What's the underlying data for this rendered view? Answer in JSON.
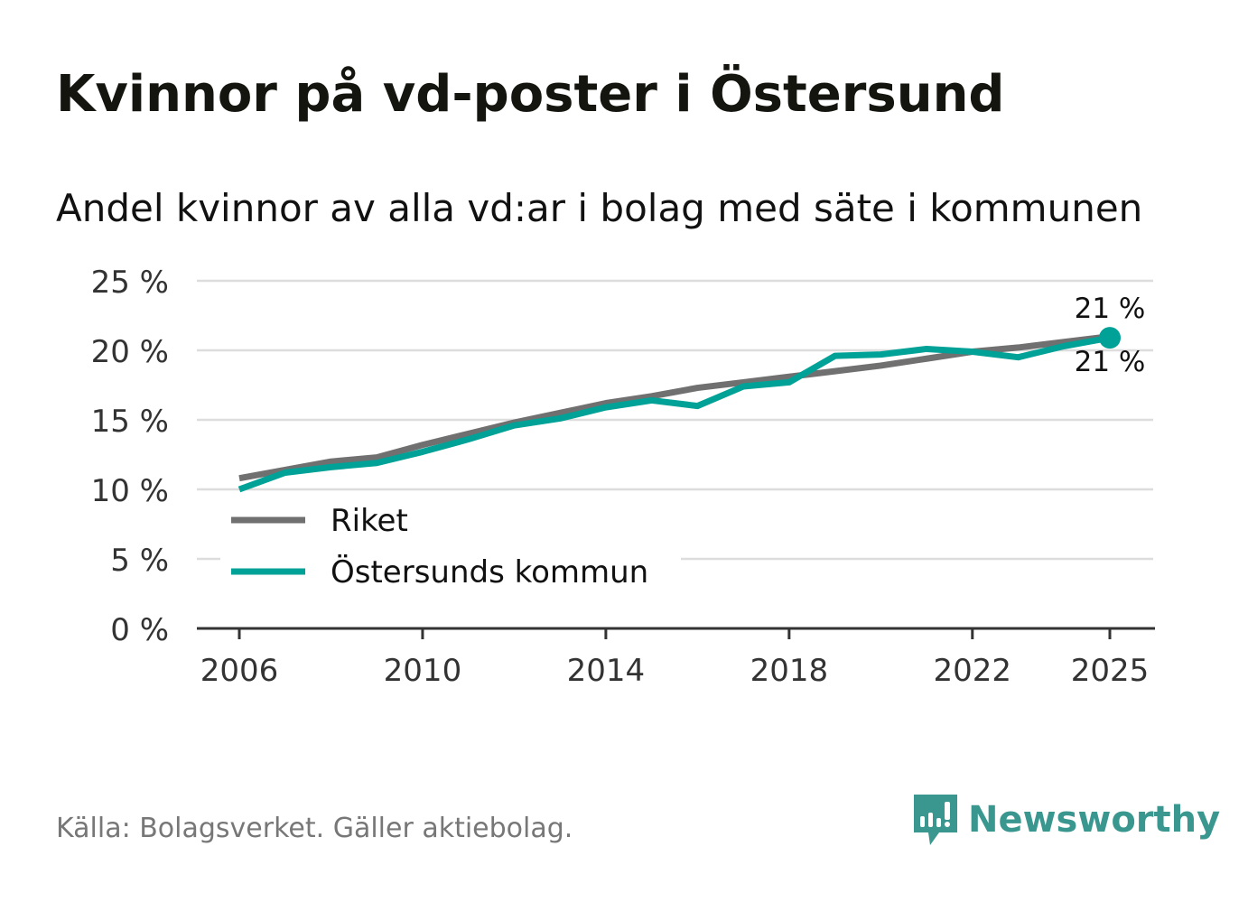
{
  "title": "Kvinnor på vd-poster i Östersund",
  "subtitle": "Andel kvinnor av alla vd:ar i bolag med säte i kommunen",
  "source": "Källa: Bolagsverket. Gäller aktiebolag.",
  "brand": "Newsworthy",
  "chart_data": {
    "type": "line",
    "x": [
      2006,
      2007,
      2008,
      2009,
      2010,
      2011,
      2012,
      2013,
      2014,
      2015,
      2016,
      2017,
      2018,
      2019,
      2020,
      2021,
      2022,
      2023,
      2024,
      2025
    ],
    "series": [
      {
        "name": "Riket",
        "color": "#707070",
        "values": [
          10.8,
          11.4,
          12.0,
          12.3,
          13.2,
          14.0,
          14.8,
          15.5,
          16.2,
          16.7,
          17.3,
          17.7,
          18.1,
          18.5,
          18.9,
          19.4,
          19.9,
          20.2,
          20.6,
          21.0
        ],
        "end_label": "21 %"
      },
      {
        "name": "Östersunds kommun",
        "color": "#00a196",
        "values": [
          10.0,
          11.2,
          11.6,
          11.9,
          12.7,
          13.6,
          14.6,
          15.1,
          15.9,
          16.4,
          16.0,
          17.4,
          17.7,
          19.6,
          19.7,
          20.1,
          19.9,
          19.5,
          20.3,
          20.9
        ],
        "end_label": "21 %"
      }
    ],
    "xticks": [
      2006,
      2010,
      2014,
      2018,
      2022,
      2025
    ],
    "yticks": [
      0,
      5,
      10,
      15,
      20,
      25
    ],
    "ytick_labels": [
      "0 %",
      "5 %",
      "10 %",
      "15 %",
      "20 %",
      "25 %"
    ],
    "ylim": [
      0,
      25
    ],
    "xlim": [
      2006,
      2025
    ],
    "grid": true,
    "legend": "bottom-left"
  }
}
